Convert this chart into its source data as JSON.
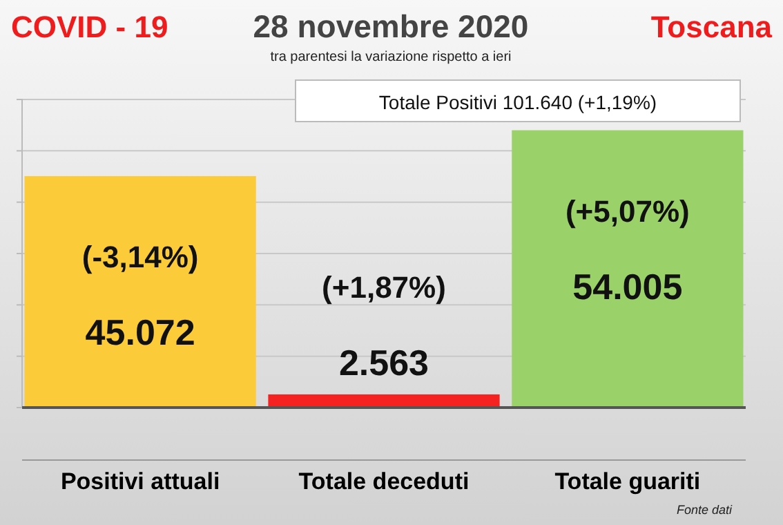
{
  "chart_data": {
    "type": "bar",
    "title": "28 novembre 2020",
    "subtitle": "tra parentesi la variazione rispetto a ieri",
    "categories": [
      "Positivi attuali",
      "Totale deceduti",
      "Totale guariti"
    ],
    "values": [
      45072,
      2563,
      54005
    ],
    "colors": [
      "#fbcb3a",
      "#f52222",
      "#9ad169"
    ],
    "value_labels": [
      "45.072",
      "2.563",
      "54.005"
    ],
    "ylim": [
      0,
      60000
    ],
    "yticks": [
      {
        "value": 0,
        "label": null
      },
      {
        "value": 10000,
        "label": null
      },
      {
        "value": 20000,
        "label": null
      },
      {
        "value": 30000,
        "label": null
      },
      {
        "value": 40000,
        "label": null
      },
      {
        "value": 50000,
        "label": null
      },
      {
        "value": 60000,
        "label": null
      }
    ],
    "grid": "y",
    "annotations": [
      "COVID - 19",
      "Toscana",
      "Totale Positivi    101.640 (+1,19%)",
      "(-3,14%)",
      "(+1,87%)",
      "(+5,07%)",
      "Fonte dati"
    ]
  }
}
